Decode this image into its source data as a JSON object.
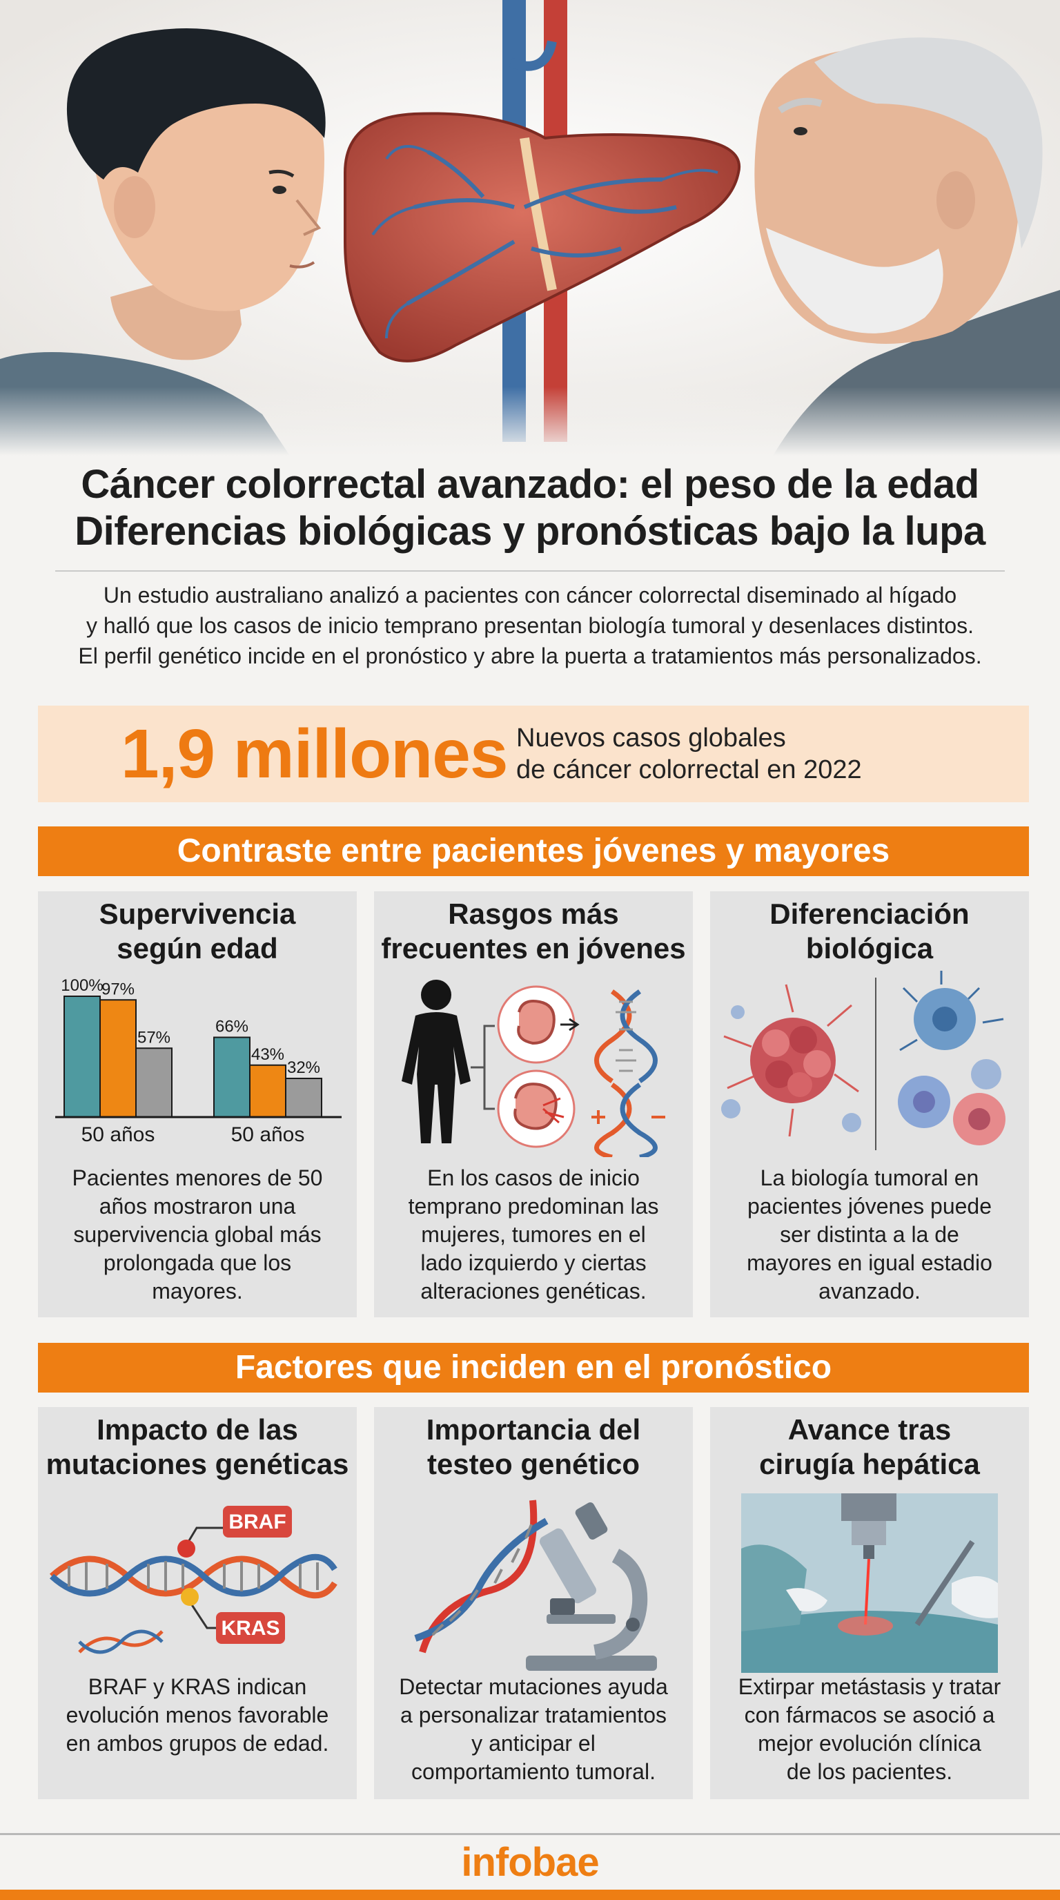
{
  "header": {
    "title_line1": "Cáncer colorrectal avanzado: el peso de la edad",
    "title_line2": "Diferencias biológicas y pronósticas bajo la lupa"
  },
  "intro": {
    "line1": "Un estudio australiano analizó a pacientes con cáncer colorrectal diseminado al hígado",
    "line2": "y halló que los casos de inicio temprano presentan biología tumoral y desenlaces distintos.",
    "line3": "El perfil genético incide en el pronóstico y abre la puerta a tratamientos más personalizados."
  },
  "stat": {
    "number": "1,9 millones",
    "line1": "Nuevos casos globales",
    "line2": "de cáncer colorrectal en 2022"
  },
  "section1": {
    "title": "Contraste entre pacientes jóvenes y mayores",
    "cards": [
      {
        "title_line1": "Supervivencia",
        "title_line2": "según edad",
        "text": [
          "Pacientes menores de 50",
          "años mostraron una",
          "supervivencia global más",
          "prolongada que los",
          "mayores."
        ]
      },
      {
        "title_line1": "Rasgos más",
        "title_line2": "frecuentes en jóvenes",
        "text": [
          "En los casos de inicio",
          "temprano predominan las",
          "mujeres, tumores en el",
          "lado izquierdo y ciertas",
          "alteraciones genéticas."
        ]
      },
      {
        "title_line1": "Diferenciación",
        "title_line2": "biológica",
        "text": [
          "La biología tumoral en",
          "pacientes jóvenes puede",
          "ser distinta a la de",
          "mayores en igual estadio",
          "avanzado."
        ]
      }
    ]
  },
  "section2": {
    "title": "Factores que inciden en el pronóstico",
    "cards": [
      {
        "title_line1": "Impacto de las",
        "title_line2": "mutaciones genéticas",
        "label_top": "BRAF",
        "label_bottom": "KRAS",
        "text": [
          "BRAF y KRAS indican",
          "evolución menos favorable",
          "en ambos grupos de edad."
        ]
      },
      {
        "title_line1": "Importancia del",
        "title_line2": "testeo genético",
        "text": [
          "Detectar mutaciones ayuda",
          "a personalizar tratamientos",
          "y anticipar el",
          "comportamiento tumoral."
        ]
      },
      {
        "title_line1": "Avance tras",
        "title_line2": "cirugía hepática",
        "text": [
          "Extirpar metástasis y tratar",
          "con fármacos se asoció a",
          "mejor evolución clínica",
          "de los pacientes."
        ]
      }
    ]
  },
  "chart_data": {
    "type": "bar",
    "categories": [
      "50 años",
      "50 años"
    ],
    "series": [
      {
        "values": [
          100,
          66
        ],
        "color": "#4f9aa0"
      },
      {
        "values": [
          97,
          43
        ],
        "color": "#ee8714"
      },
      {
        "values": [
          57,
          32
        ],
        "color": "#9b9b9b"
      }
    ],
    "value_labels": [
      [
        "100%",
        "66%"
      ],
      [
        "97%",
        "43%"
      ],
      [
        "57%",
        "32%"
      ]
    ],
    "ylim": [
      0,
      100
    ]
  },
  "footer": {
    "logo": "infobae"
  },
  "colors": {
    "accent": "#ee7e13",
    "teal": "#4f9aa0",
    "gray": "#9b9b9b"
  }
}
